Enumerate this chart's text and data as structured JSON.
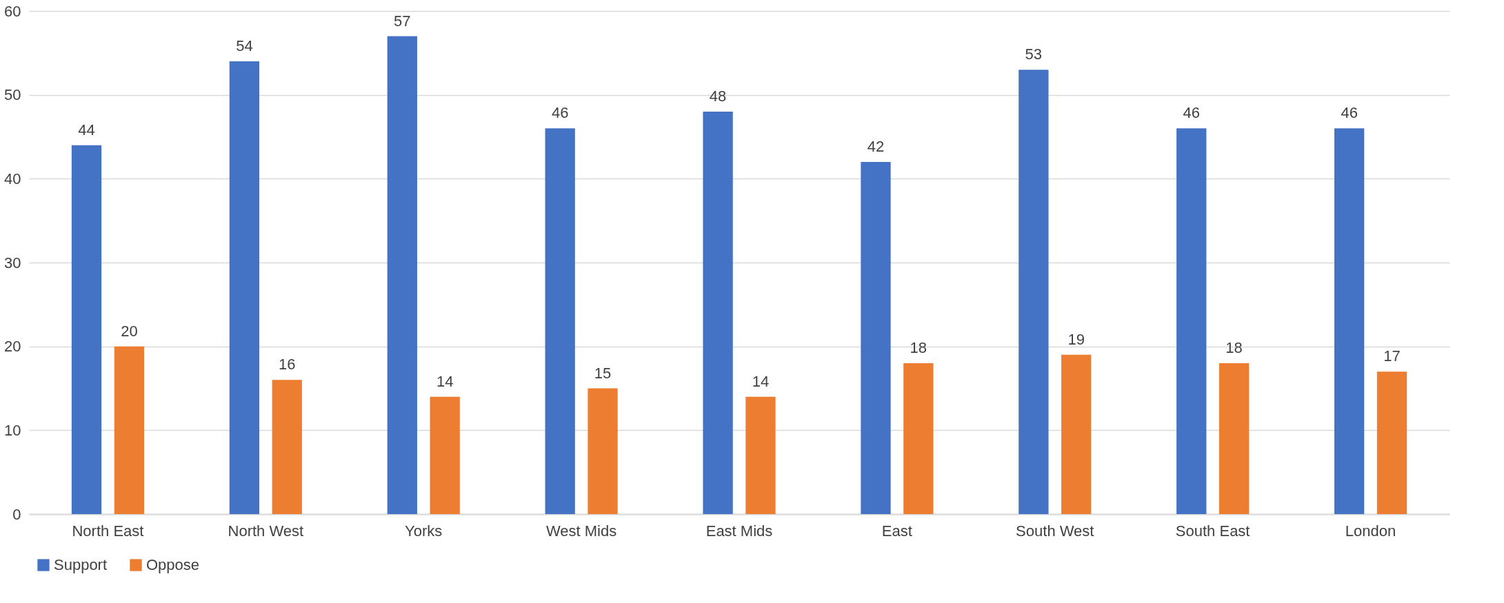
{
  "chart_data": {
    "type": "bar",
    "categories": [
      "North East",
      "North West",
      "Yorks",
      "West Mids",
      "East Mids",
      "East",
      "South West",
      "South East",
      "London"
    ],
    "series": [
      {
        "name": "Support",
        "color": "#4472c4",
        "values": [
          44,
          54,
          57,
          46,
          48,
          42,
          53,
          46,
          46
        ]
      },
      {
        "name": "Oppose",
        "color": "#ed7d31",
        "values": [
          20,
          16,
          14,
          15,
          14,
          18,
          19,
          18,
          17
        ]
      }
    ],
    "ylim": [
      0,
      60
    ],
    "yticks": [
      0,
      10,
      20,
      30,
      40,
      50,
      60
    ],
    "grid": "y",
    "legend": "bottom",
    "data_labels": true
  }
}
